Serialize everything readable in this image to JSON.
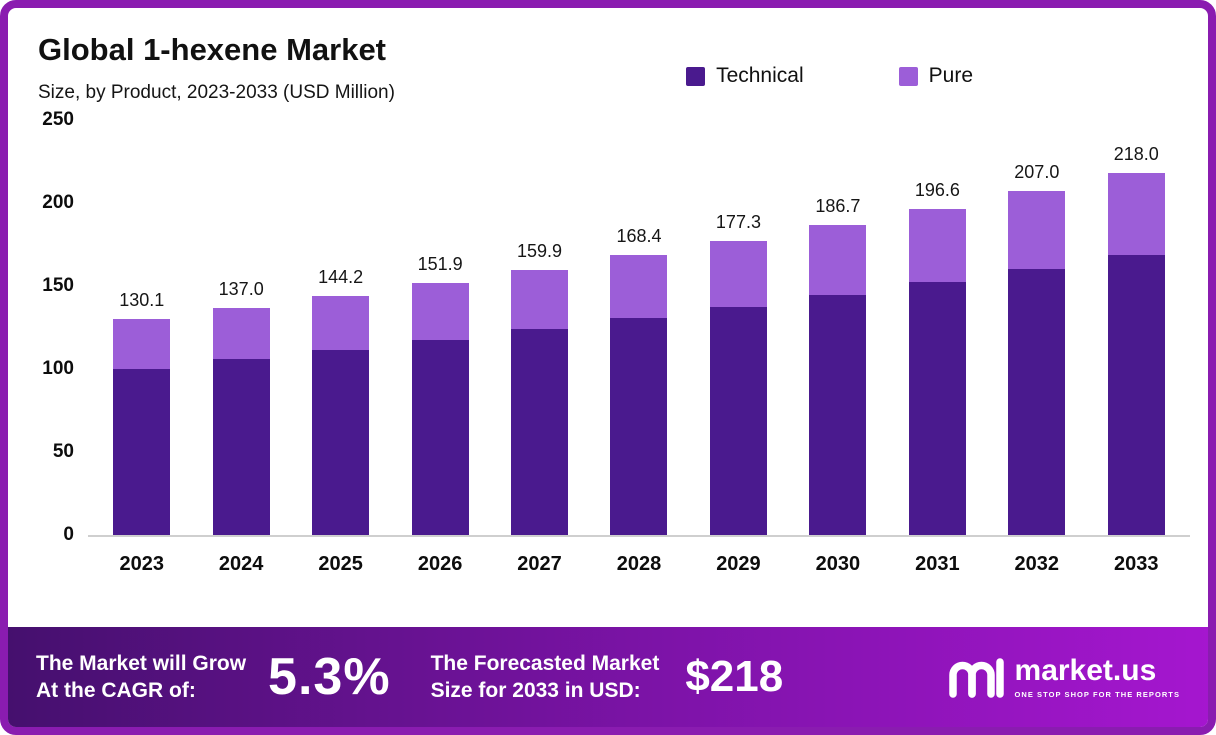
{
  "header": {
    "title": "Global 1-hexene Market",
    "subtitle": "Size, by Product, 2023-2033 (USD Million)"
  },
  "legend": [
    {
      "label": "Technical",
      "color": "#4a1a8e"
    },
    {
      "label": "Pure",
      "color": "#9c5ed8"
    }
  ],
  "chart_data": {
    "type": "bar",
    "stacked": true,
    "title": "Global 1-hexene Market Size, by Product, 2023-2033 (USD Million)",
    "categories": [
      "2023",
      "2024",
      "2025",
      "2026",
      "2027",
      "2028",
      "2029",
      "2030",
      "2031",
      "2032",
      "2033"
    ],
    "series": [
      {
        "name": "Technical",
        "color": "#4a1a8e",
        "values": [
          100.0,
          105.8,
          111.5,
          117.5,
          123.9,
          130.5,
          137.4,
          144.7,
          152.3,
          160.4,
          168.9
        ]
      },
      {
        "name": "Pure",
        "color": "#9c5ed8",
        "values": [
          30.1,
          31.2,
          32.7,
          34.4,
          36.0,
          37.9,
          39.9,
          42.0,
          44.3,
          46.6,
          49.1
        ]
      }
    ],
    "totals": [
      130.1,
      137.0,
      144.2,
      151.9,
      159.9,
      168.4,
      177.3,
      186.7,
      196.6,
      207.0,
      218.0
    ],
    "total_labels": [
      "130.1",
      "137.0",
      "144.2",
      "151.9",
      "159.9",
      "168.4",
      "177.3",
      "186.7",
      "196.6",
      "207.0",
      "218.0"
    ],
    "xlabel": "",
    "ylabel": "",
    "ylim": [
      0,
      250
    ],
    "yticks": [
      0,
      50,
      100,
      150,
      200,
      250
    ],
    "grid": false,
    "legend_position": "top"
  },
  "banner": {
    "cagr_label": "The Market will Grow\nAt the CAGR of:",
    "cagr_value": "5.3%",
    "forecast_label": "The Forecasted Market\nSize for 2033 in USD:",
    "forecast_value": "$218",
    "logo_text": "market.us",
    "logo_tagline": "ONE STOP SHOP FOR THE REPORTS"
  },
  "colors": {
    "frame_border": "#8a1cb0",
    "banner_gradient_start": "#45106e",
    "banner_gradient_end": "#a516cf",
    "axis_line": "#cfcfcf"
  }
}
